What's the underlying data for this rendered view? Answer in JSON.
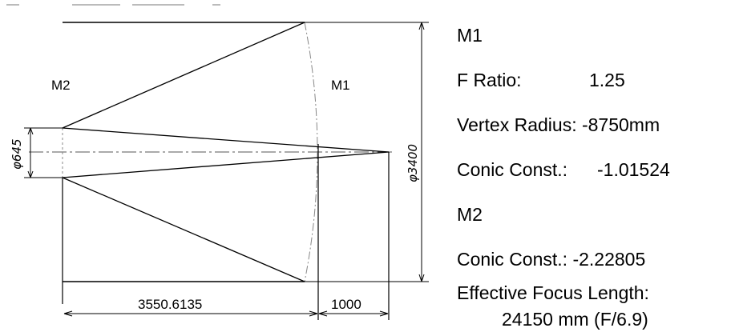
{
  "diagram": {
    "secondary_label": "M2",
    "primary_label": "M1",
    "m2_diameter_label": "φ645",
    "m1_diameter_label": "φ3400",
    "mirror_spacing_label": "3550.6135",
    "back_focus_label": "1000"
  },
  "specs": {
    "m1_heading": "M1",
    "f_ratio_label": "F Ratio:",
    "f_ratio_value": "1.25",
    "vertex_radius_label": "Vertex Radius:",
    "vertex_radius_value": "-8750mm",
    "m1_conic_label": "Conic Const.:",
    "m1_conic_value": "-1.01524",
    "m2_heading": "M2",
    "m2_conic_label": "Conic Const.:",
    "m2_conic_value": "-2.22805",
    "efl_label": "Effective Focus Length:",
    "efl_value": "24150 mm (F/6.9)"
  }
}
